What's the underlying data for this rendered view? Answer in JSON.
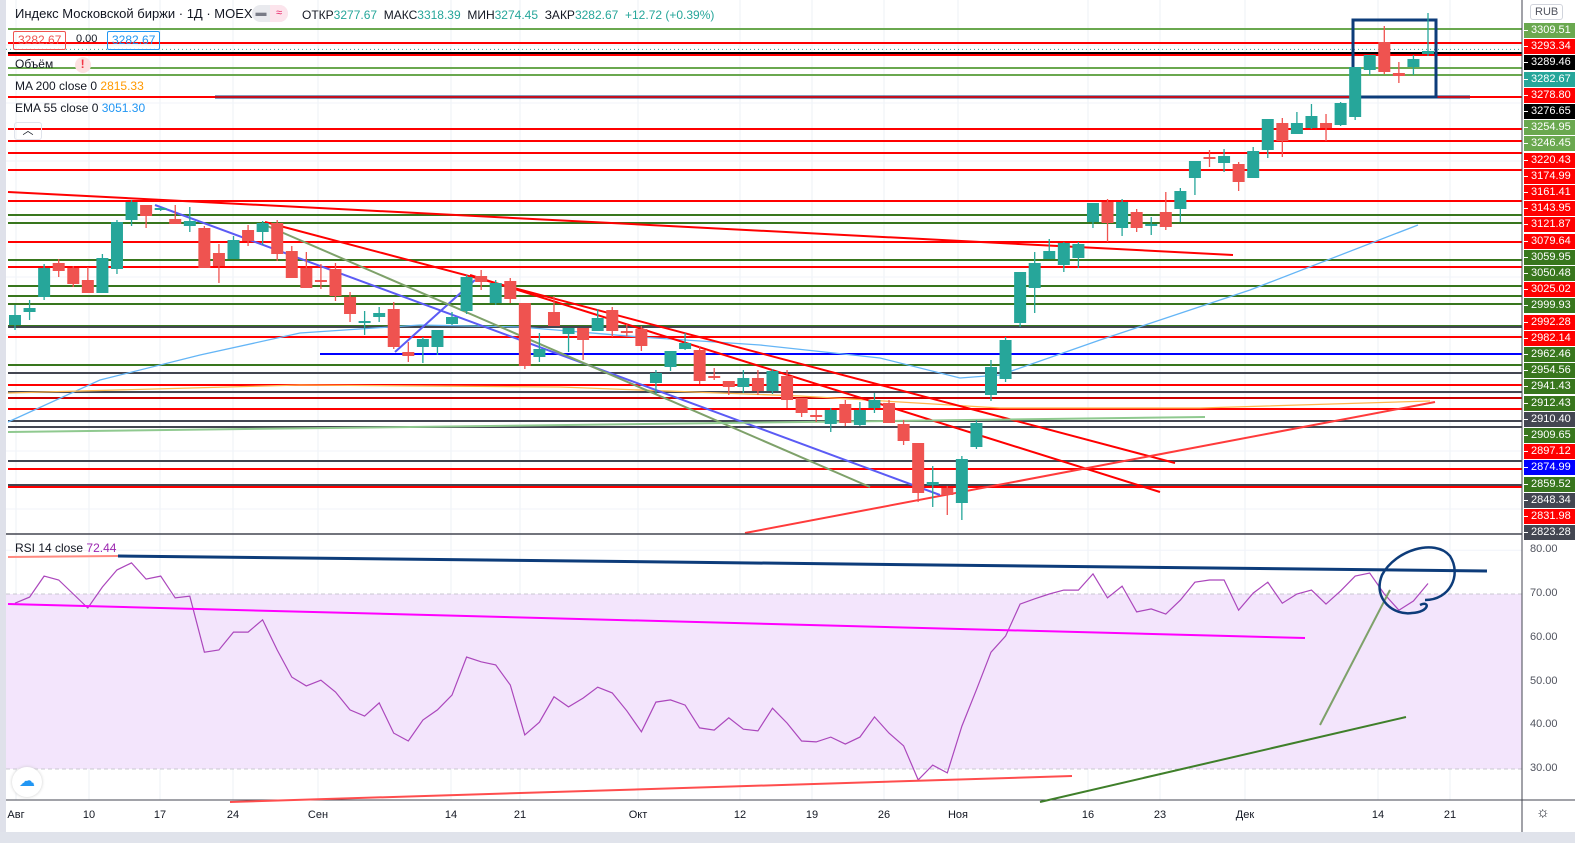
{
  "header": {
    "title": "Индекс Московской биржи · 1Д · MOEX",
    "open_label": "ОТКР",
    "open": "3277.67",
    "high_label": "МАКС",
    "high": "3318.39",
    "low_label": "МИН",
    "low": "3274.45",
    "close_label": "ЗАКР",
    "close": "3282.67",
    "change": "+12.72 (+0.39%)",
    "bid": "3282.67",
    "spread": "0.00",
    "ask": "3282.67",
    "mode_icons": [
      "minus-icon",
      "approx-icon"
    ]
  },
  "indicators": {
    "volume_label": "Объём",
    "volume_warning": "!",
    "ma_label": "MA 200 close 0",
    "ma_value": "2815.33",
    "ema_label": "EMA 55 close 0",
    "ema_value": "3051.30",
    "rsi_label": "RSI 14 close",
    "rsi_value": "72.44"
  },
  "currency": "RUB",
  "colors": {
    "up": "#26a69a",
    "down": "#ef5350",
    "ma": "#ff9800",
    "ema": "#2196f3",
    "rsi": "#9c27b0"
  },
  "price_labels": [
    {
      "text": "3309.51",
      "color": "#6aa84f"
    },
    {
      "text": "3293.34",
      "color": "#ff0000"
    },
    {
      "text": "3289.46",
      "color": "#000000"
    },
    {
      "text": "3282.67",
      "color": "#26a69a"
    },
    {
      "text": "3278.80",
      "color": "#ff0000"
    },
    {
      "text": "3276.65",
      "color": "#000000"
    },
    {
      "text": "3254.95",
      "color": "#6aa84f"
    },
    {
      "text": "3246.45",
      "color": "#6aa84f"
    },
    {
      "text": "3220.43",
      "color": "#ff0000"
    },
    {
      "text": "3174.99",
      "color": "#ff0000"
    },
    {
      "text": "3161.41",
      "color": "#ff0000"
    },
    {
      "text": "3143.95",
      "color": "#ff0000"
    },
    {
      "text": "3121.87",
      "color": "#ff0000"
    },
    {
      "text": "3079.64",
      "color": "#ff0000"
    },
    {
      "text": "3059.95",
      "color": "#38761d"
    },
    {
      "text": "3050.48",
      "color": "#38761d"
    },
    {
      "text": "3025.02",
      "color": "#ff0000"
    },
    {
      "text": "2999.93",
      "color": "#38761d"
    },
    {
      "text": "2992.28",
      "color": "#ff0000"
    },
    {
      "text": "2982.14",
      "color": "#ff0000"
    },
    {
      "text": "2962.46",
      "color": "#38761d"
    },
    {
      "text": "2954.56",
      "color": "#38761d"
    },
    {
      "text": "2941.43",
      "color": "#38761d"
    },
    {
      "text": "2912.43",
      "color": "#38761d"
    },
    {
      "text": "2910.40",
      "color": "#434651"
    },
    {
      "text": "2909.65",
      "color": "#38761d"
    },
    {
      "text": "2897.12",
      "color": "#ff0000"
    },
    {
      "text": "2874.99",
      "color": "#0000ff"
    },
    {
      "text": "2859.52",
      "color": "#38761d"
    },
    {
      "text": "2848.34",
      "color": "#434651"
    },
    {
      "text": "2831.98",
      "color": "#ff0000"
    },
    {
      "text": "2823.28",
      "color": "#434651"
    }
  ],
  "rsi_axis": [
    "80.00",
    "70.00",
    "60.00",
    "50.00",
    "40.00",
    "30.00"
  ],
  "time_axis": [
    "Авг",
    "10",
    "17",
    "24",
    "Сен",
    "14",
    "21",
    "Окт",
    "12",
    "19",
    "26",
    "Ноя",
    "16",
    "23",
    "Дек",
    "14",
    "21"
  ],
  "chart_data": {
    "type": "candlestick",
    "title": "Индекс Московской биржи · 1Д · MOEX",
    "ohlc_order": [
      "open",
      "high",
      "low",
      "close"
    ],
    "candles": [
      [
        3007,
        3027,
        3002,
        3017
      ],
      [
        3020,
        3032,
        3012,
        3024
      ],
      [
        3035,
        3068,
        3032,
        3064
      ],
      [
        3069,
        3073,
        3055,
        3061
      ],
      [
        3064,
        3066,
        3045,
        3048
      ],
      [
        3052,
        3065,
        3039,
        3039
      ],
      [
        3039,
        3078,
        3039,
        3074
      ],
      [
        3063,
        3112,
        3058,
        3110
      ],
      [
        3112,
        3132,
        3106,
        3130
      ],
      [
        3127,
        3127,
        3104,
        3116
      ],
      [
        3123,
        3125,
        3121,
        3124
      ],
      [
        3113,
        3127,
        3108,
        3108
      ],
      [
        3106,
        3125,
        3100,
        3111
      ],
      [
        3104,
        3106,
        3064,
        3064
      ],
      [
        3079,
        3088,
        3049,
        3066
      ],
      [
        3073,
        3096,
        3073,
        3092
      ],
      [
        3102,
        3107,
        3086,
        3091
      ],
      [
        3100,
        3111,
        3087,
        3109
      ],
      [
        3109,
        3112,
        3071,
        3078
      ],
      [
        3081,
        3086,
        3054,
        3054
      ],
      [
        3064,
        3080,
        3044,
        3044
      ],
      [
        3052,
        3068,
        3043,
        3051
      ],
      [
        3063,
        3069,
        3031,
        3036
      ],
      [
        3035,
        3040,
        3010,
        3018
      ],
      [
        3010,
        3021,
        2997,
        3011
      ],
      [
        3015,
        3025,
        3010,
        3019
      ],
      [
        3023,
        3030,
        2983,
        2985
      ],
      [
        2980,
        2990,
        2970,
        2976
      ],
      [
        2985,
        2995,
        2969,
        2993
      ],
      [
        2985,
        3002,
        2977,
        3002
      ],
      [
        3008,
        3020,
        3007,
        3015
      ],
      [
        3021,
        3057,
        3018,
        3055
      ],
      [
        3056,
        3062,
        3042,
        3050
      ],
      [
        3029,
        3052,
        3027,
        3049
      ],
      [
        3051,
        3054,
        3029,
        3033
      ],
      [
        3029,
        3029,
        2963,
        2966
      ],
      [
        2975,
        2999,
        2970,
        2983
      ],
      [
        3020,
        3036,
        3006,
        3006
      ],
      [
        2998,
        3004,
        2980,
        3004
      ],
      [
        3004,
        3004,
        2972,
        2992
      ],
      [
        3001,
        3023,
        3001,
        3014
      ],
      [
        3022,
        3025,
        2995,
        3001
      ],
      [
        3001,
        3008,
        2996,
        2999
      ],
      [
        3003,
        3006,
        2981,
        2986
      ],
      [
        2949,
        2962,
        2938,
        2959
      ],
      [
        2965,
        2981,
        2961,
        2981
      ],
      [
        2983,
        2999,
        2982,
        2989
      ],
      [
        2982,
        2986,
        2948,
        2951
      ],
      [
        2956,
        2964,
        2952,
        2954
      ],
      [
        2951,
        2951,
        2937,
        2945
      ],
      [
        2945,
        2962,
        2939,
        2954
      ],
      [
        2954,
        2962,
        2937,
        2941
      ],
      [
        2941,
        2963,
        2938,
        2961
      ],
      [
        2956,
        2962,
        2924,
        2932
      ],
      [
        2934,
        2934,
        2915,
        2919
      ],
      [
        2917,
        2922,
        2910,
        2915
      ],
      [
        2908,
        2924,
        2900,
        2922
      ],
      [
        2928,
        2932,
        2906,
        2909
      ],
      [
        2907,
        2930,
        2906,
        2922
      ],
      [
        2924,
        2939,
        2919,
        2932
      ],
      [
        2929,
        2932,
        2909,
        2909
      ],
      [
        2908,
        2912,
        2887,
        2891
      ],
      [
        2889,
        2889,
        2830,
        2839
      ],
      [
        2847,
        2866,
        2825,
        2850
      ],
      [
        2844,
        2846,
        2817,
        2837
      ],
      [
        2829,
        2876,
        2812,
        2873
      ],
      [
        2885,
        2912,
        2883,
        2909
      ],
      [
        2937,
        2972,
        2931,
        2965
      ],
      [
        2953,
        2995,
        2950,
        2992
      ],
      [
        3009,
        3060,
        3005,
        3060
      ],
      [
        3044,
        3080,
        3019,
        3069
      ],
      [
        3073,
        3093,
        3073,
        3081
      ],
      [
        3067,
        3090,
        3060,
        3089
      ],
      [
        3074,
        3090,
        3064,
        3088
      ],
      [
        3110,
        3129,
        3104,
        3129
      ],
      [
        3130,
        3133,
        3090,
        3109
      ],
      [
        3104,
        3133,
        3096,
        3130
      ],
      [
        3120,
        3123,
        3100,
        3104
      ],
      [
        3108,
        3115,
        3097,
        3108
      ],
      [
        3120,
        3140,
        3102,
        3105
      ],
      [
        3123,
        3144,
        3110,
        3141
      ],
      [
        3154,
        3171,
        3137,
        3171
      ],
      [
        3175,
        3182,
        3165,
        3174
      ],
      [
        3169,
        3183,
        3160,
        3176
      ],
      [
        3168,
        3170,
        3141,
        3150
      ],
      [
        3154,
        3185,
        3154,
        3181
      ],
      [
        3182,
        3213,
        3174,
        3213
      ],
      [
        3209,
        3214,
        3175,
        3191
      ],
      [
        3198,
        3220,
        3198,
        3209
      ],
      [
        3204,
        3228,
        3203,
        3216
      ],
      [
        3209,
        3218,
        3191,
        3204
      ],
      [
        3207,
        3230,
        3206,
        3229
      ],
      [
        3215,
        3265,
        3212,
        3265
      ],
      [
        3262,
        3277,
        3257,
        3277
      ],
      [
        3290,
        3306,
        3258,
        3260
      ],
      [
        3259,
        3270,
        3249,
        3256
      ],
      [
        3265,
        3277,
        3257,
        3273
      ],
      [
        3278,
        3319,
        3276,
        3281
      ]
    ],
    "rsi": [
      67.9,
      69.3,
      74.1,
      73.2,
      70.0,
      66.8,
      71.6,
      75.5,
      77.1,
      73.4,
      74.1,
      69.1,
      69.5,
      56.7,
      57.2,
      61.3,
      61.3,
      64.1,
      57.2,
      51.0,
      49.0,
      50.3,
      47.6,
      43.5,
      42.1,
      45.1,
      38.2,
      36.4,
      41.2,
      43.5,
      46.9,
      55.6,
      54.5,
      53.8,
      49.2,
      37.8,
      40.7,
      46.5,
      44.2,
      46.2,
      48.7,
      47.4,
      43.3,
      38.5,
      45.3,
      45.8,
      44.6,
      39.4,
      38.9,
      41.7,
      39.1,
      38.7,
      43.9,
      40.5,
      36.4,
      36.2,
      37.3,
      35.7,
      37.3,
      41.9,
      38.2,
      35.3,
      27.5,
      30.9,
      29.1,
      39.8,
      48.1,
      56.7,
      60.4,
      67.7,
      68.9,
      70.0,
      70.9,
      70.9,
      74.6,
      69.1,
      71.8,
      65.9,
      66.6,
      65.4,
      68.6,
      72.7,
      73.2,
      73.2,
      66.3,
      70.2,
      72.7,
      67.9,
      70.0,
      70.9,
      67.7,
      70.7,
      74.1,
      74.8,
      70.0,
      66.3,
      68.4,
      72.4
    ],
    "rsi_range": [
      20,
      85
    ],
    "rsi_band": [
      30,
      70
    ],
    "horizontal_levels": [
      {
        "price": 3303,
        "color": "#6aa84f"
      },
      {
        "price": 3289,
        "color": "#ff0000"
      },
      {
        "price": 3279,
        "color": "#000000"
      },
      {
        "price": 3277,
        "color": "#ff0000"
      },
      {
        "price": 3264,
        "color": "#6aa84f"
      },
      {
        "price": 3257,
        "color": "#6aa84f"
      },
      {
        "price": 3235,
        "color": "#ff0000"
      },
      {
        "price": 3203,
        "color": "#ff0000"
      },
      {
        "price": 3191,
        "color": "#ff0000"
      },
      {
        "price": 3179,
        "color": "#ff0000"
      },
      {
        "price": 3162,
        "color": "#ff0000"
      },
      {
        "price": 3131,
        "color": "#ff0000"
      },
      {
        "price": 3117,
        "color": "#38761d"
      },
      {
        "price": 3109,
        "color": "#38761d"
      },
      {
        "price": 3090,
        "color": "#ff0000"
      },
      {
        "price": 3072,
        "color": "#38761d"
      },
      {
        "price": 3065,
        "color": "#ff0000"
      },
      {
        "price": 3046,
        "color": "#38761d"
      },
      {
        "price": 3036,
        "color": "#38761d"
      },
      {
        "price": 3028,
        "color": "#38761d"
      },
      {
        "price": 3006,
        "color": "#38761d"
      },
      {
        "price": 3005,
        "color": "#434651"
      },
      {
        "price": 2995,
        "color": "#ff0000"
      },
      {
        "price": 2967,
        "color": "#38761d"
      },
      {
        "price": 2959,
        "color": "#434651"
      },
      {
        "price": 2947,
        "color": "#ff0000"
      },
      {
        "price": 2940,
        "color": "#434651"
      },
      {
        "price": 2934,
        "color": "#cc0000"
      },
      {
        "price": 2923,
        "color": "#ff0000"
      },
      {
        "price": 2911,
        "color": "#434651"
      },
      {
        "price": 2905,
        "color": "#434651"
      },
      {
        "price": 2871,
        "color": "#434651"
      },
      {
        "price": 2863,
        "color": "#ff0000"
      },
      {
        "price": 2847,
        "color": "#434651"
      },
      {
        "price": 2845,
        "color": "#ff0000"
      }
    ],
    "support_level_blue": 2978,
    "last_price": 3282.67
  }
}
